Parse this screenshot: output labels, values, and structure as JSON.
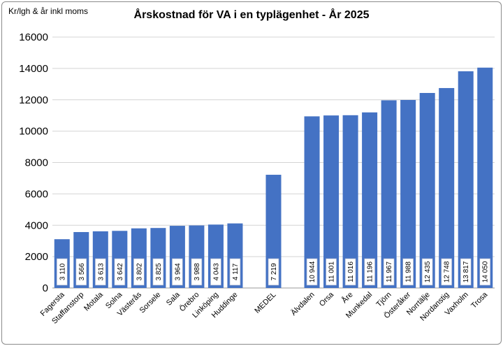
{
  "chart_data": {
    "type": "bar",
    "title": "Årskostnad för VA i en typlägenhet - År 2025",
    "ylabel": "Kr/lgh & år inkl moms",
    "xlabel": "",
    "ylim": [
      0,
      16000
    ],
    "yticks": [
      0,
      2000,
      4000,
      6000,
      8000,
      10000,
      12000,
      14000,
      16000
    ],
    "grid": true,
    "legend": "none",
    "bar_color": "#4472c4",
    "categories": [
      "Fagersta",
      "Staffanstorp",
      "Motala",
      "Solna",
      "Västerås",
      "Sorsele",
      "Sala",
      "Örebro",
      "Linköping",
      "Huddinge",
      "",
      "MEDEL",
      "",
      "Älvdalen",
      "Orsa",
      "Åre",
      "Munkedal",
      "Tjörn",
      "Österåker",
      "Norrtälje",
      "Nordanstig",
      "Vaxholm",
      "Trosa"
    ],
    "values": [
      3110,
      3566,
      3613,
      3642,
      3802,
      3825,
      3964,
      3988,
      4043,
      4117,
      null,
      7219,
      null,
      10944,
      11001,
      11016,
      11196,
      11967,
      11988,
      12435,
      12748,
      13817,
      14050
    ],
    "data_labels": [
      "3 110",
      "3 566",
      "3 613",
      "3 642",
      "3 802",
      "3 825",
      "3 964",
      "3 988",
      "4 043",
      "4 117",
      "",
      "7 219",
      "",
      "10 944",
      "11 001",
      "11 016",
      "11 196",
      "11 967",
      "11 988",
      "12 435",
      "12 748",
      "13 817",
      "14 050"
    ]
  }
}
